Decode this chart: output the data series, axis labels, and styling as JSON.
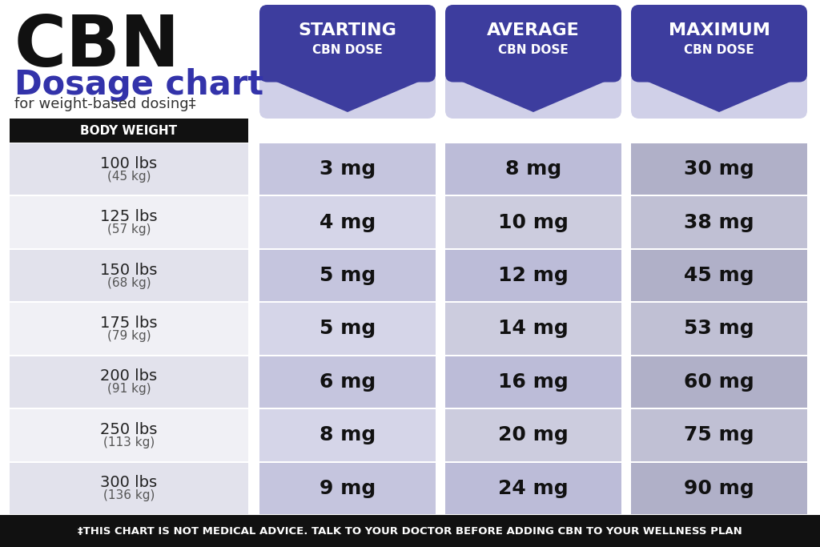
{
  "title_cbn": "CBN",
  "title_dosage": "Dosage chart",
  "title_sub": "for weight-based dosing‡",
  "body_weight_label": "BODY WEIGHT",
  "col_headers": [
    "STARTING\nCBN DOSE",
    "AVERAGE\nCBN DOSE",
    "MAXIMUM\nCBN DOSE"
  ],
  "weights": [
    "100 lbs\n(45 kg)",
    "125 lbs\n(57 kg)",
    "150 lbs\n(68 kg)",
    "175 lbs\n(79 kg)",
    "200 lbs\n(91 kg)",
    "250 lbs\n(113 kg)",
    "300 lbs\n(136 kg)"
  ],
  "starting": [
    "3 mg",
    "4 mg",
    "5 mg",
    "5 mg",
    "6 mg",
    "8 mg",
    "9 mg"
  ],
  "average": [
    "8 mg",
    "10 mg",
    "12 mg",
    "14 mg",
    "16 mg",
    "20 mg",
    "24 mg"
  ],
  "maximum": [
    "30 mg",
    "38 mg",
    "45 mg",
    "53 mg",
    "60 mg",
    "75 mg",
    "90 mg"
  ],
  "col_header_bg": "#3d3d9e",
  "col_header_text": "#ffffff",
  "body_weight_bg": "#111111",
  "body_weight_text": "#ffffff",
  "row_bg_even": "#e2e2ec",
  "row_bg_odd": "#f0f0f5",
  "col1_bg_even": "#c5c5de",
  "col1_bg_odd": "#d5d5e8",
  "col2_bg_even": "#bcbcd8",
  "col2_bg_odd": "#ccccde",
  "col3_bg_even": "#b0b0c8",
  "col3_bg_odd": "#c0c0d4",
  "header_light_bg": "#d0d0e8",
  "footer_bg": "#111111",
  "footer_text": "#ffffff",
  "footer_msg": "‡THIS CHART IS NOT MEDICAL ADVICE. TALK TO YOUR DOCTOR BEFORE ADDING CBN TO YOUR WELLNESS PLAN",
  "cbn_color": "#111111",
  "dosage_color": "#3333aa",
  "sub_color": "#333333",
  "white": "#ffffff"
}
